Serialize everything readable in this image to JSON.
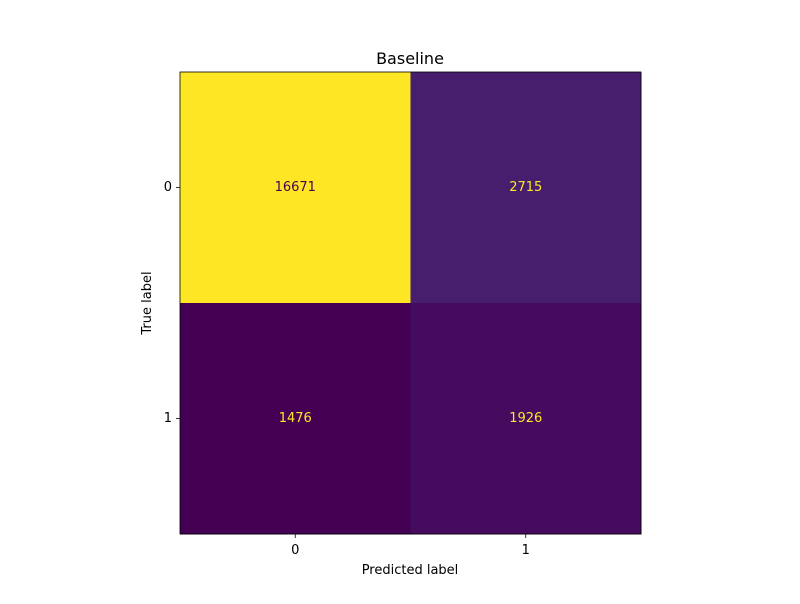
{
  "chart_data": {
    "type": "heatmap",
    "title": "Baseline",
    "xlabel": "Predicted label",
    "ylabel": "True label",
    "x_categories": [
      "0",
      "1"
    ],
    "y_categories": [
      "0",
      "1"
    ],
    "values": [
      [
        16671,
        2715
      ],
      [
        1476,
        1926
      ]
    ],
    "colormap": "viridis",
    "text_colors": {
      "on_dark": "#fde725",
      "on_light": "#440154"
    },
    "grid": false,
    "colorbar": false
  }
}
